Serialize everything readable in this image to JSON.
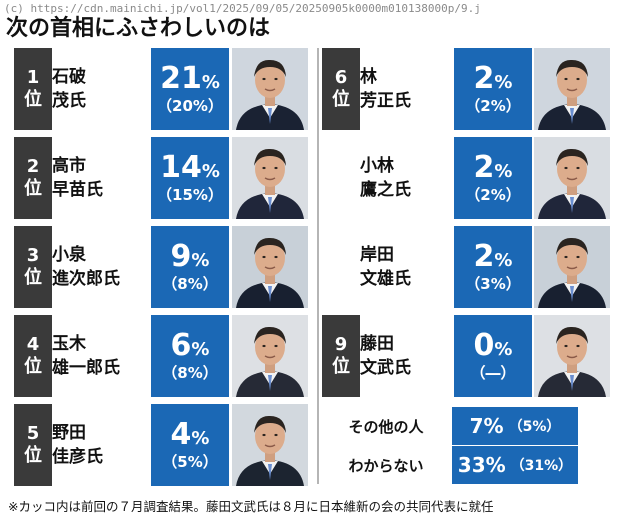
{
  "watermark": "(c) https://cdn.mainichi.jp/vol1/2025/09/05/20250905k0000m010138000p/9.j",
  "title": "次の首相にふさわしいのは",
  "footnote": "※カッコ内は前回の７月調査結果。藤田文武氏は８月に日本維新の会の共同代表に就任",
  "colors": {
    "accent_blue": "#1b68b5",
    "rank_bg": "#3a3a3a"
  },
  "chart_data": {
    "type": "table",
    "title": "次の首相にふさわしいのは",
    "unit": "%",
    "candidates": [
      {
        "rank": "1",
        "rank_suffix": "位",
        "name_line1": "石破",
        "name_line2": "茂氏",
        "value": 21,
        "value_text": "21",
        "pct": "%",
        "prev_value": 20,
        "prev_text": "（20%）",
        "photo": "ishiba-portrait"
      },
      {
        "rank": "2",
        "rank_suffix": "位",
        "name_line1": "高市",
        "name_line2": "早苗氏",
        "value": 14,
        "value_text": "14",
        "pct": "%",
        "prev_value": 15,
        "prev_text": "（15%）",
        "photo": "takaichi-portrait"
      },
      {
        "rank": "3",
        "rank_suffix": "位",
        "name_line1": "小泉",
        "name_line2": "進次郎氏",
        "value": 9,
        "value_text": "9",
        "pct": "%",
        "prev_value": 8,
        "prev_text": "（8%）",
        "photo": "koizumi-portrait"
      },
      {
        "rank": "4",
        "rank_suffix": "位",
        "name_line1": "玉木",
        "name_line2": "雄一郎氏",
        "value": 6,
        "value_text": "6",
        "pct": "%",
        "prev_value": 8,
        "prev_text": "（8%）",
        "photo": "tamaki-portrait"
      },
      {
        "rank": "5",
        "rank_suffix": "位",
        "name_line1": "野田",
        "name_line2": "佳彦氏",
        "value": 4,
        "value_text": "4",
        "pct": "%",
        "prev_value": 5,
        "prev_text": "（5%）",
        "photo": "noda-portrait"
      },
      {
        "rank": "6",
        "rank_suffix": "位",
        "name_line1": "林",
        "name_line2": "芳正氏",
        "value": 2,
        "value_text": "2",
        "pct": "%",
        "prev_value": 2,
        "prev_text": "（2%）",
        "photo": "hayashi-portrait"
      },
      {
        "rank": "",
        "rank_suffix": "",
        "name_line1": "小林",
        "name_line2": "鷹之氏",
        "value": 2,
        "value_text": "2",
        "pct": "%",
        "prev_value": 2,
        "prev_text": "（2%）",
        "photo": "kobayashi-portrait"
      },
      {
        "rank": "",
        "rank_suffix": "",
        "name_line1": "岸田",
        "name_line2": "文雄氏",
        "value": 2,
        "value_text": "2",
        "pct": "%",
        "prev_value": 3,
        "prev_text": "（3%）",
        "photo": "kishida-portrait"
      },
      {
        "rank": "9",
        "rank_suffix": "位",
        "name_line1": "藤田",
        "name_line2": "文武氏",
        "value": 0,
        "value_text": "0",
        "pct": "%",
        "prev_value": null,
        "prev_text": "（―）",
        "photo": "fujita-portrait"
      }
    ],
    "others": [
      {
        "label": "その他の人",
        "value": 7,
        "value_text": "7%",
        "prev_value": 5,
        "prev_text": "（5%）"
      },
      {
        "label": "わからない",
        "value": 33,
        "value_text": "33%",
        "prev_value": 31,
        "prev_text": "（31%）"
      }
    ]
  }
}
